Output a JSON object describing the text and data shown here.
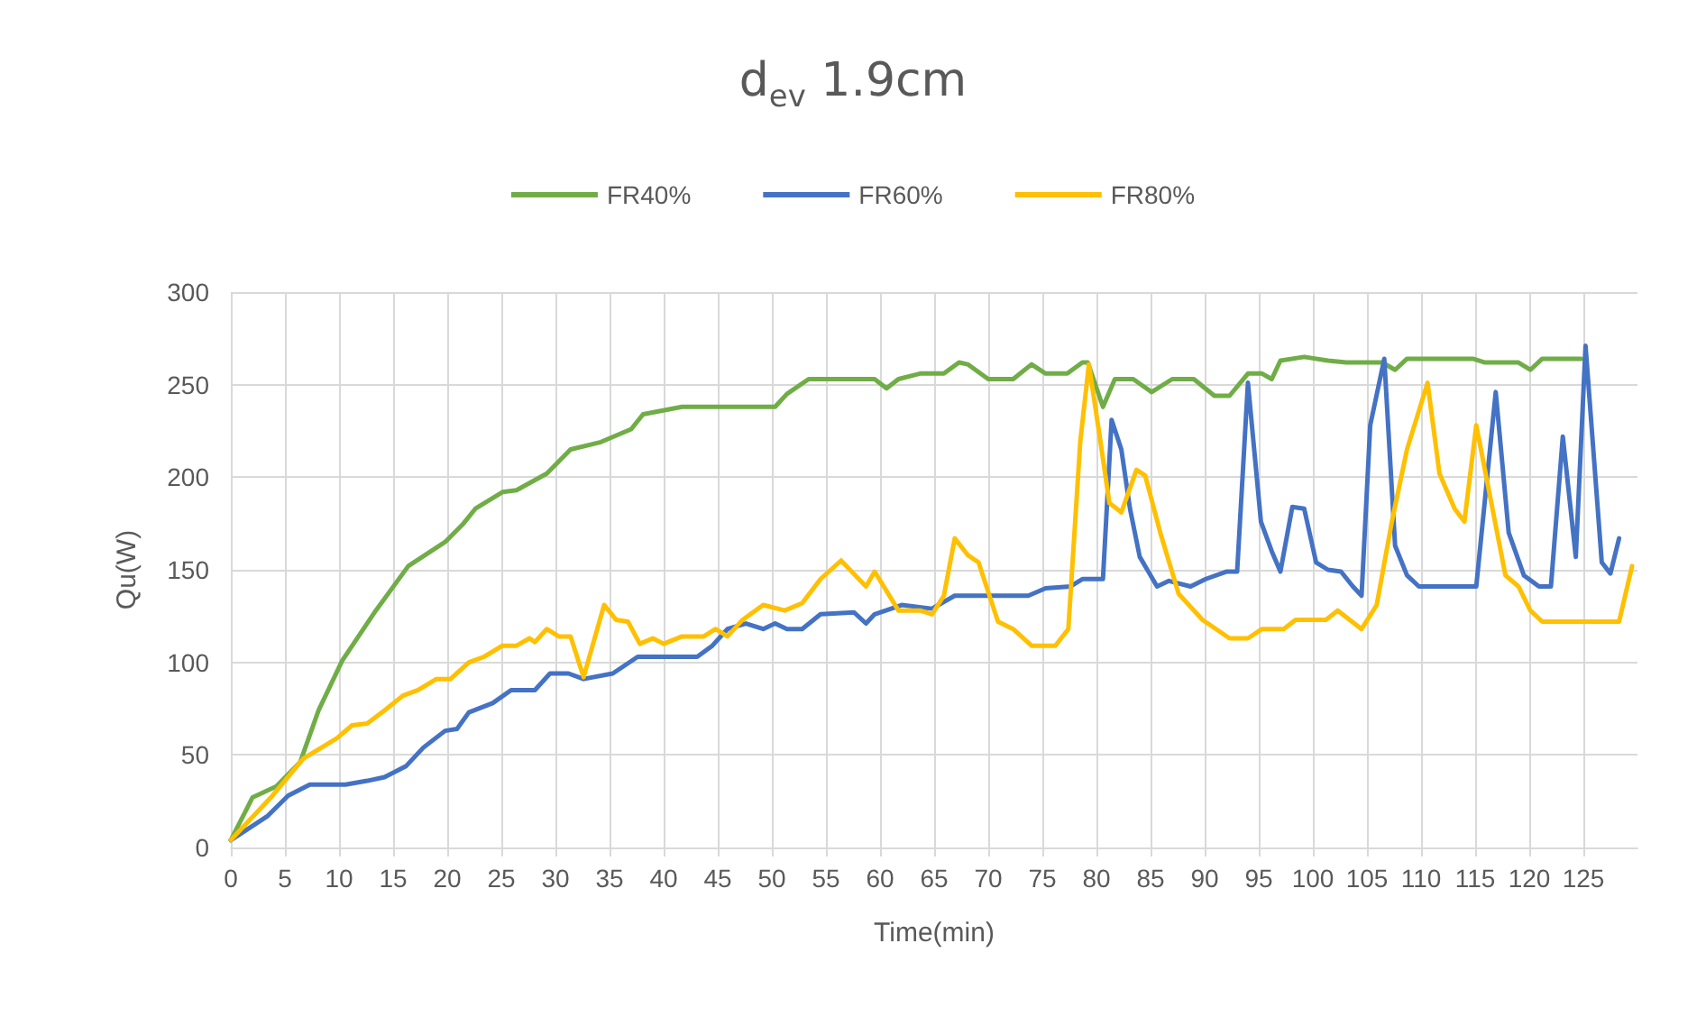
{
  "chart_data": {
    "type": "line",
    "title": "d$_{ev}$ 1.9cm",
    "xlabel": "Time(min)",
    "ylabel": "Qu(W)",
    "xlim": [
      0,
      130
    ],
    "xticks": [
      0,
      5,
      10,
      15,
      20,
      25,
      30,
      35,
      40,
      45,
      50,
      55,
      60,
      65,
      70,
      75,
      80,
      85,
      90,
      95,
      100,
      105,
      110,
      115,
      120,
      125
    ],
    "ylim": [
      0,
      300
    ],
    "yticks": [
      0,
      50,
      100,
      150,
      200,
      250,
      300
    ],
    "grid": true,
    "legend": "top",
    "marker": "none",
    "line_style": "solid",
    "series": [
      {
        "name": "FR40%",
        "color": "#70ad47",
        "x": [
          0,
          2,
          4.2,
          6.4,
          8.1,
          10.3,
          13.4,
          16.4,
          19.8,
          21.5,
          22.6,
          25.1,
          26.4,
          29.2,
          31.4,
          34.2,
          37,
          38.1,
          41.7,
          50.3,
          51.4,
          53.4,
          59.5,
          60.6,
          61.7,
          63.7,
          65.9,
          67.3,
          68.1,
          70,
          72.3,
          74,
          75.3,
          77.3,
          78.7,
          79.2,
          80.6,
          81.7,
          83.4,
          85.1,
          87,
          89,
          90.9,
          92.3,
          94,
          95.3,
          96.2,
          97,
          99.2,
          101.4,
          103.1,
          106.4,
          107.6,
          108.7,
          114.8,
          115.9,
          119,
          120.1,
          121.2,
          124.8
        ],
        "values": [
          4,
          27,
          33,
          46,
          74,
          101,
          128,
          152,
          165,
          175,
          183,
          192,
          193,
          202,
          215,
          219,
          226,
          234,
          238,
          238,
          245,
          253,
          253,
          248,
          253,
          256,
          256,
          262,
          261,
          253,
          253,
          261,
          256,
          256,
          262,
          262,
          238,
          253,
          253,
          246,
          253,
          253,
          244,
          244,
          256,
          256,
          253,
          263,
          265,
          263,
          262,
          262,
          258,
          264,
          264,
          262,
          262,
          258,
          264,
          264
        ]
      },
      {
        "name": "FR60%",
        "color": "#4472c4",
        "x": [
          0,
          3.4,
          5.3,
          7.3,
          10.6,
          12.6,
          14.2,
          16.2,
          17.8,
          19.8,
          20.9,
          22,
          24.2,
          25.9,
          28.1,
          29.5,
          31.2,
          32.6,
          35.3,
          37.6,
          43.1,
          44.5,
          45.9,
          47.6,
          49.2,
          50.3,
          51.4,
          52.8,
          54.5,
          57.6,
          58.7,
          59.5,
          62,
          64.8,
          66.9,
          73.7,
          75.3,
          77.6,
          78.7,
          80.6,
          81.4,
          82.3,
          83.1,
          84,
          85.6,
          86.7,
          88.7,
          90.1,
          92,
          93,
          94,
          95.2,
          96.2,
          97,
          98.1,
          99.2,
          100.3,
          101.4,
          102.6,
          103.7,
          104.5,
          105.3,
          106.6,
          107.6,
          108.7,
          109.8,
          115.1,
          116.9,
          118.1,
          119.5,
          120.9,
          122,
          123.1,
          124.3,
          125.2,
          126.7,
          127.5,
          128.3
        ],
        "values": [
          4,
          17,
          28,
          34,
          34,
          36,
          38,
          44,
          54,
          63,
          64,
          73,
          78,
          85,
          85,
          94,
          94,
          91,
          94,
          103,
          103,
          109,
          118,
          121,
          118,
          121,
          118,
          118,
          126,
          127,
          121,
          126,
          131,
          129,
          136,
          136,
          140,
          141,
          145,
          145,
          231,
          215,
          183,
          157,
          141,
          144,
          141,
          145,
          149,
          149,
          251,
          176,
          160,
          149,
          184,
          183,
          154,
          150,
          149,
          141,
          136,
          228,
          264,
          163,
          147,
          141,
          141,
          246,
          170,
          147,
          141,
          141,
          222,
          157,
          271,
          154,
          148,
          167
        ]
      },
      {
        "name": "FR80%",
        "color": "#ffc000",
        "x": [
          0,
          3.7,
          6.7,
          9.8,
          11.2,
          12.6,
          14.2,
          15.9,
          17.3,
          19,
          20.3,
          22,
          23.4,
          25.1,
          26.4,
          27.6,
          28.1,
          29.2,
          30.3,
          31.4,
          32.6,
          34.5,
          35.6,
          36.7,
          37.8,
          39,
          40,
          41.7,
          43.7,
          44.8,
          45.9,
          47.3,
          49.2,
          51.2,
          52.8,
          54.5,
          56.4,
          58.7,
          59.5,
          61.7,
          63.7,
          64.8,
          65.9,
          66.9,
          68.1,
          69.1,
          70.9,
          72.3,
          74,
          76.2,
          77.4,
          78.5,
          79.3,
          80.3,
          81.2,
          82.3,
          83.7,
          84.5,
          85.9,
          87.6,
          89.8,
          92.3,
          94,
          95.3,
          97.3,
          98.4,
          101.2,
          102.3,
          104.5,
          105.9,
          107.3,
          108.7,
          110.6,
          111.7,
          113.1,
          114,
          115.1,
          116.4,
          117.8,
          119,
          120.1,
          121.2,
          127,
          128.3,
          129.5
        ],
        "values": [
          4,
          27,
          48,
          59,
          66,
          67,
          74,
          82,
          85,
          91,
          91,
          100,
          103,
          109,
          109,
          113,
          111,
          118,
          114,
          114,
          92,
          131,
          123,
          122,
          110,
          113,
          110,
          114,
          114,
          118,
          114,
          123,
          131,
          128,
          132,
          145,
          155,
          141,
          149,
          128,
          128,
          126,
          136,
          167,
          158,
          154,
          122,
          118,
          109,
          109,
          118,
          219,
          261,
          222,
          186,
          181,
          204,
          201,
          170,
          137,
          123,
          113,
          113,
          118,
          118,
          123,
          123,
          128,
          118,
          131,
          176,
          215,
          251,
          202,
          183,
          176,
          228,
          189,
          147,
          141,
          128,
          122,
          122,
          122,
          152
        ]
      }
    ]
  }
}
